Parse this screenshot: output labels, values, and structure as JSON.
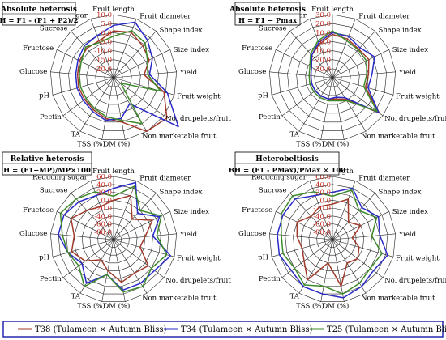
{
  "chart_data": [
    {
      "type": "radar",
      "title": "Absolute heterosis",
      "subtitle": "H = F1 - (P1 + P2)/2",
      "r_ticks": [
        10.0,
        5.0,
        0.0,
        -5.0,
        -10.0,
        -15.0,
        -20.0
      ],
      "tick_labels": [
        "10.0",
        "5.0",
        "0.0",
        "-5.0",
        "-10.0",
        "-15.0",
        "-20.0"
      ],
      "rlim": [
        -25,
        10
      ],
      "axes": [
        "Fruit length",
        "Fruit diameter",
        "Shape index",
        "Size index",
        "Yield",
        "Fruit weight",
        "No. drupelets/fruit",
        "Non marketable fruit",
        "DM (%)",
        "TSS (%)",
        "TA",
        "Pectin",
        "pH",
        "Glucose",
        "Fructose",
        "Sucrose",
        "Reducing sugar"
      ],
      "series": [
        {
          "name": "T38 (Tulameen × Autumn Bliss)",
          "values": [
            1,
            2,
            -1,
            -3,
            -8,
            4,
            12,
            10,
            0,
            -2,
            -4,
            -5,
            -5,
            -5,
            -4,
            -3,
            -3
          ]
        },
        {
          "name": "T34 (Tulameen × Autumn Bliss)",
          "values": [
            4,
            8,
            3,
            -1,
            -5,
            6,
            20,
            -8,
            -2,
            -1,
            -3,
            -4,
            -4,
            -4,
            -3,
            -1,
            0
          ]
        },
        {
          "name": "T25 (Tulameen × Autumn Bliss)",
          "values": [
            -2,
            3,
            1,
            -4,
            -6,
            2,
            -20,
            5,
            -1,
            -3,
            -5,
            -6,
            -6,
            -6,
            -5,
            -2,
            -4
          ]
        }
      ]
    },
    {
      "type": "radar",
      "title": "Absolute heterosis",
      "subtitle": "H = F1 − Pmax",
      "r_ticks": [
        30.0,
        20.0,
        10.0,
        0.0,
        -10.0,
        -20.0,
        -30.0
      ],
      "tick_labels": [
        "30.0",
        "20.0",
        "10.0",
        "0.0",
        "-10.0",
        "-20.0",
        "-30.0"
      ],
      "rlim": [
        -40,
        30
      ],
      "axes": [
        "Fruit length",
        "Fruit diameter",
        "Shape index",
        "Size index",
        "Yield",
        "Fruit weight",
        "No. drupelets/fruit",
        "Non marketable fruit",
        "DM (%)",
        "TSS (%)",
        "TA",
        "Pectin",
        "pH",
        "Glucose",
        "Fructose",
        "Sucrose",
        "Reducing sugar"
      ],
      "series": [
        {
          "name": "T38 (Tulameen × Autumn Bliss)",
          "values": [
            8,
            6,
            3,
            5,
            0,
            -2,
            25,
            -12,
            -16,
            -16,
            -16,
            -16,
            -16,
            -16,
            -14,
            -6,
            0
          ]
        },
        {
          "name": "T34 (Tulameen × Autumn Bliss)",
          "values": [
            10,
            9,
            5,
            12,
            4,
            1,
            24,
            -14,
            -18,
            -16,
            -16,
            -16,
            -16,
            -16,
            -14,
            -6,
            2
          ]
        },
        {
          "name": "T25 (Tulameen × Autumn Bliss)",
          "values": [
            12,
            4,
            2,
            2,
            -2,
            -4,
            22,
            -10,
            -14,
            -14,
            -14,
            -14,
            -14,
            -14,
            -12,
            -4,
            4
          ]
        }
      ]
    },
    {
      "type": "radar",
      "title": "Relative heterosis",
      "subtitle": "H = (F1−MP)/MP×100",
      "r_ticks": [
        60.0,
        40.0,
        20.0,
        0.0,
        -20.0,
        -40.0,
        -60.0,
        -80.0
      ],
      "tick_labels": [
        "60.0",
        "40.0",
        "20.0",
        "0.0",
        "-20.0",
        "-40.0",
        "-60.0",
        "-80.0"
      ],
      "rlim": [
        -100,
        60
      ],
      "axes": [
        "Fruit length",
        "Fruit diameter",
        "Shape index",
        "Size index",
        "Yield",
        "Fruit weight",
        "No. drupelets/fruit",
        "Non marketable fruit",
        "DM (%)",
        "TSS (%)",
        "TA",
        "Pectin",
        "pH",
        "Glucose",
        "Fructose",
        "Sucrose",
        "Reducing sugar"
      ],
      "series": [
        {
          "name": "T38 (Tulameen × Autumn Bliss)",
          "values": [
            0,
            20,
            -30,
            10,
            -20,
            -30,
            10,
            0,
            10,
            -20,
            -40,
            -10,
            10,
            0,
            20,
            0,
            -10
          ]
        },
        {
          "name": "T34 (Tulameen × Autumn Bliss)",
          "values": [
            30,
            55,
            -10,
            30,
            0,
            50,
            30,
            30,
            30,
            -10,
            30,
            0,
            20,
            40,
            40,
            30,
            20
          ]
        },
        {
          "name": "T25 (Tulameen × Autumn Bliss)",
          "values": [
            10,
            45,
            0,
            35,
            10,
            40,
            20,
            40,
            35,
            -10,
            40,
            10,
            20,
            30,
            50,
            40,
            30
          ]
        }
      ]
    },
    {
      "type": "radar",
      "title": "Heterobeltiosis",
      "subtitle": "BH = (F1 - PMax)/PMax × 100",
      "r_ticks": [
        60.0,
        40.0,
        20.0,
        0.0,
        -20.0,
        -40.0,
        -60.0,
        -80.0
      ],
      "tick_labels": [
        "60.0",
        "40.0",
        "20.0",
        "0.0",
        "-20.0",
        "-40.0",
        "-60.0",
        "-80.0"
      ],
      "rlim": [
        -100,
        60
      ],
      "axes": [
        "Fruit length",
        "Fruit diameter",
        "Shape index",
        "Size index",
        "Yield",
        "Fruit weight",
        "No. drupelets/fruit",
        "Non marketable fruit",
        "DM (%)",
        "TSS (%)",
        "TA",
        "Pectin",
        "pH",
        "Glucose",
        "Fructose",
        "Sucrose",
        "Reducing sugar"
      ],
      "series": [
        {
          "name": "T38 (Tulameen × Autumn Bliss)",
          "values": [
            -10,
            10,
            -40,
            -20,
            -50,
            -30,
            -20,
            -30,
            20,
            -40,
            20,
            -10,
            -20,
            -10,
            0,
            -20,
            -10
          ]
        },
        {
          "name": "T34 (Tulameen × Autumn Bliss)",
          "values": [
            20,
            40,
            10,
            30,
            20,
            45,
            30,
            40,
            50,
            40,
            40,
            30,
            40,
            40,
            40,
            40,
            20
          ]
        },
        {
          "name": "T25 (Tulameen × Autumn Bliss)",
          "values": [
            10,
            35,
            0,
            25,
            0,
            30,
            20,
            30,
            40,
            20,
            35,
            20,
            30,
            30,
            45,
            50,
            30
          ]
        }
      ]
    }
  ],
  "colors": {
    "T38": "#a03a2a",
    "T34": "#2a2ac8",
    "T25": "#3d8a2a",
    "grid": "#222222",
    "tick": "#c0281e",
    "title_border": "#000000"
  },
  "legend": [
    {
      "name": "T38 (Tulameen × Autumn Bliss)"
    },
    {
      "name": "T34 (Tulameen × Autumn Bliss)"
    },
    {
      "name": "T25 (Tulameen × Autumn Bliss)"
    }
  ]
}
